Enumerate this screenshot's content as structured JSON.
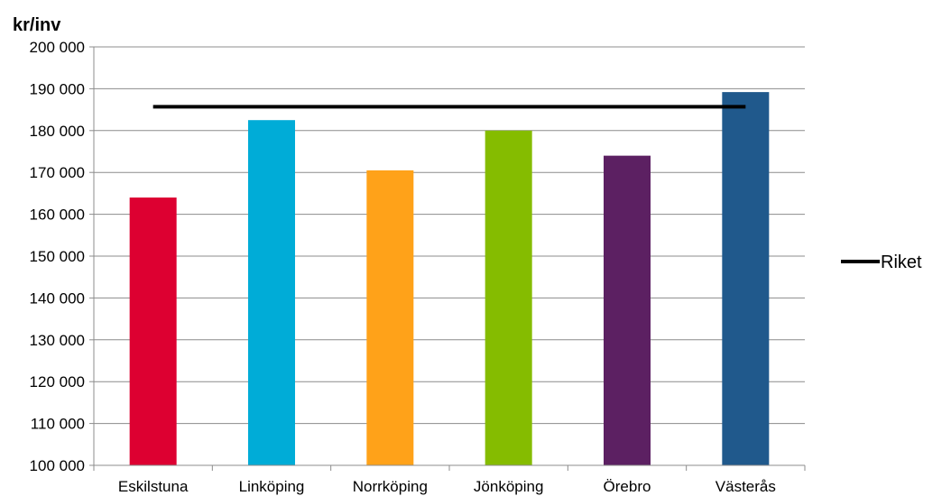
{
  "chart_data": {
    "type": "bar",
    "ylabel": "kr/inv",
    "categories": [
      "Eskilstuna",
      "Linköping",
      "Norrköping",
      "Jönköping",
      "Örebro",
      "Västerås"
    ],
    "values": [
      164000,
      182500,
      170500,
      180000,
      174000,
      189200
    ],
    "bar_colors": [
      "#dd0031",
      "#00acd7",
      "#ffa219",
      "#85bc00",
      "#5c2062",
      "#20598c"
    ],
    "ylim": [
      100000,
      200000
    ],
    "y_ticks": [
      100000,
      110000,
      120000,
      130000,
      140000,
      150000,
      160000,
      170000,
      180000,
      190000,
      200000
    ],
    "y_tick_labels": [
      "100 000",
      "110 000",
      "120 000",
      "130 000",
      "140 000",
      "150 000",
      "160 000",
      "170 000",
      "180 000",
      "190 000",
      "200 000"
    ],
    "grid": true,
    "reference_line": {
      "name": "Riket",
      "value": 185700,
      "color": "#000000"
    },
    "legend": {
      "position": "right",
      "entries": [
        "Riket"
      ]
    }
  }
}
